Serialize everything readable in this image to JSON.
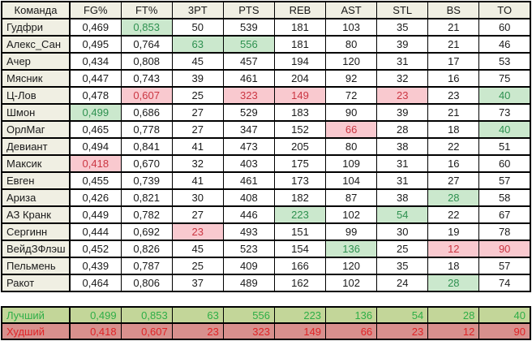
{
  "chart_data": {
    "type": "table",
    "title": "",
    "columns": [
      "Команда",
      "FG%",
      "FT%",
      "3PT",
      "PTS",
      "REB",
      "AST",
      "STL",
      "BS",
      "TO"
    ],
    "rows": [
      {
        "team": "Гудфри",
        "values": [
          "0,469",
          "0,853",
          "50",
          "539",
          "181",
          "103",
          "35",
          "21",
          "60"
        ],
        "hl": [
          "",
          "g",
          "",
          "",
          "",
          "",
          "",
          "",
          ""
        ]
      },
      {
        "team": "Алекс_Сан",
        "values": [
          "0,495",
          "0,764",
          "63",
          "556",
          "181",
          "80",
          "39",
          "21",
          "46"
        ],
        "hl": [
          "",
          "",
          "g",
          "g",
          "",
          "",
          "",
          "",
          ""
        ]
      },
      {
        "team": "Ачер",
        "values": [
          "0,434",
          "0,808",
          "45",
          "457",
          "194",
          "120",
          "31",
          "17",
          "53"
        ],
        "hl": [
          "",
          "",
          "",
          "",
          "",
          "",
          "",
          "",
          ""
        ]
      },
      {
        "team": "Мясник",
        "values": [
          "0,447",
          "0,743",
          "39",
          "461",
          "204",
          "92",
          "32",
          "16",
          "75"
        ],
        "hl": [
          "",
          "",
          "",
          "",
          "",
          "",
          "",
          "",
          ""
        ]
      },
      {
        "team": "Ц-Лов",
        "values": [
          "0,478",
          "0,607",
          "25",
          "323",
          "149",
          "72",
          "23",
          "23",
          "40"
        ],
        "hl": [
          "",
          "r",
          "",
          "r",
          "r",
          "",
          "r",
          "",
          "g"
        ]
      },
      {
        "team": "Шмон",
        "values": [
          "0,499",
          "0,686",
          "27",
          "529",
          "183",
          "90",
          "39",
          "21",
          "73"
        ],
        "hl": [
          "g",
          "",
          "",
          "",
          "",
          "",
          "",
          "",
          ""
        ]
      },
      {
        "team": "ОрлМаг",
        "values": [
          "0,465",
          "0,778",
          "27",
          "347",
          "152",
          "66",
          "28",
          "18",
          "40"
        ],
        "hl": [
          "",
          "",
          "",
          "",
          "",
          "r",
          "",
          "",
          "g"
        ]
      },
      {
        "team": "Девиант",
        "values": [
          "0,494",
          "0,841",
          "41",
          "473",
          "205",
          "80",
          "38",
          "22",
          "51"
        ],
        "hl": [
          "",
          "",
          "",
          "",
          "",
          "",
          "",
          "",
          ""
        ]
      },
      {
        "team": "Максик",
        "values": [
          "0,418",
          "0,670",
          "32",
          "403",
          "175",
          "109",
          "31",
          "16",
          "60"
        ],
        "hl": [
          "r",
          "",
          "",
          "",
          "",
          "",
          "",
          "",
          ""
        ]
      },
      {
        "team": "Евген",
        "values": [
          "0,455",
          "0,739",
          "41",
          "461",
          "173",
          "104",
          "31",
          "27",
          "57"
        ],
        "hl": [
          "",
          "",
          "",
          "",
          "",
          "",
          "",
          "",
          ""
        ]
      },
      {
        "team": "Ариза",
        "values": [
          "0,426",
          "0,821",
          "30",
          "408",
          "182",
          "87",
          "38",
          "28",
          "58"
        ],
        "hl": [
          "",
          "",
          "",
          "",
          "",
          "",
          "",
          "g",
          ""
        ]
      },
      {
        "team": "АЗ Кранк",
        "values": [
          "0,449",
          "0,782",
          "27",
          "446",
          "223",
          "102",
          "54",
          "22",
          "67"
        ],
        "hl": [
          "",
          "",
          "",
          "",
          "g",
          "",
          "g",
          "",
          ""
        ]
      },
      {
        "team": "Сергинн",
        "values": [
          "0,444",
          "0,692",
          "23",
          "493",
          "151",
          "99",
          "30",
          "19",
          "78"
        ],
        "hl": [
          "",
          "",
          "r",
          "",
          "",
          "",
          "",
          "",
          ""
        ]
      },
      {
        "team": "ВейдЗФлэш",
        "values": [
          "0,452",
          "0,826",
          "45",
          "523",
          "154",
          "136",
          "25",
          "12",
          "90"
        ],
        "hl": [
          "",
          "",
          "",
          "",
          "",
          "g",
          "",
          "r",
          "r"
        ]
      },
      {
        "team": "Пельмень",
        "values": [
          "0,439",
          "0,787",
          "25",
          "409",
          "166",
          "120",
          "35",
          "18",
          "57"
        ],
        "hl": [
          "",
          "",
          "",
          "",
          "",
          "",
          "",
          "",
          ""
        ]
      },
      {
        "team": "Ракот",
        "values": [
          "0,464",
          "0,806",
          "37",
          "489",
          "162",
          "102",
          "24",
          "28",
          "74"
        ],
        "hl": [
          "",
          "",
          "",
          "",
          "",
          "",
          "",
          "g",
          ""
        ]
      }
    ],
    "summary": [
      {
        "label": "Лучший",
        "type": "best",
        "values": [
          "0,499",
          "0,853",
          "63",
          "556",
          "223",
          "136",
          "54",
          "28",
          "40"
        ]
      },
      {
        "label": "Худший",
        "type": "worst",
        "values": [
          "0,418",
          "0,607",
          "23",
          "323",
          "149",
          "66",
          "23",
          "12",
          "90"
        ]
      }
    ],
    "layout": {
      "grid": true,
      "highlight_legend": {
        "g": "best value in column",
        "r": "worst value in column"
      }
    }
  },
  "colors": {
    "header_bg": "#f0efe3",
    "grid_border": "#000000",
    "best_cell_bg": "#cbe8cd",
    "best_cell_text": "#2e9150",
    "worst_cell_bg": "#f9c9cf",
    "worst_cell_text": "#cb3743",
    "best_row_bg": "#c3d699",
    "best_row_text": "#2fae47",
    "worst_row_bg": "#d8908d",
    "worst_row_text": "#e02427"
  }
}
